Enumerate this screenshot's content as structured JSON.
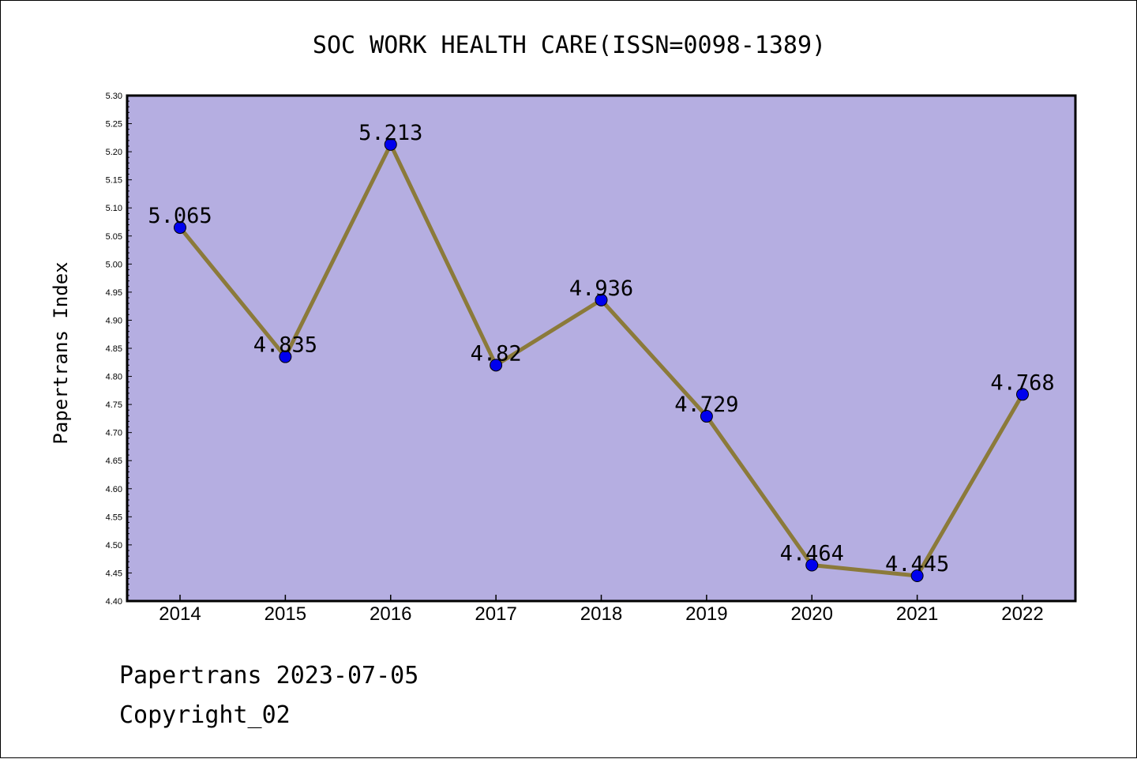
{
  "chart_data": {
    "type": "line",
    "title": "SOC WORK HEALTH CARE(ISSN=0098-1389)",
    "xlabel": "",
    "ylabel": "Papertrans Index",
    "categories": [
      "2014",
      "2015",
      "2016",
      "2017",
      "2018",
      "2019",
      "2020",
      "2021",
      "2022"
    ],
    "series": [
      {
        "name": "Papertrans Index",
        "values": [
          5.065,
          4.835,
          5.213,
          4.82,
          4.936,
          4.729,
          4.464,
          4.445,
          4.768
        ],
        "labels": [
          "5.065",
          "4.835",
          "5.213",
          "4.82",
          "4.936",
          "4.729",
          "4.464",
          "4.445",
          "4.768"
        ]
      }
    ],
    "ylim": [
      4.4,
      5.3
    ],
    "yticks": [
      "4.40",
      "4.45",
      "4.50",
      "4.55",
      "4.60",
      "4.65",
      "4.70",
      "4.75",
      "4.80",
      "4.85",
      "4.90",
      "4.95",
      "5.00",
      "5.05",
      "5.10",
      "5.15",
      "5.20",
      "5.25",
      "5.30"
    ],
    "grid": false,
    "colors": {
      "plot_background": "#b5aee1",
      "line": "#8b7a3a",
      "marker": "#0000ee"
    }
  },
  "footer": {
    "date_line": "Papertrans 2023-07-05",
    "copyright": "Copyright_02"
  }
}
